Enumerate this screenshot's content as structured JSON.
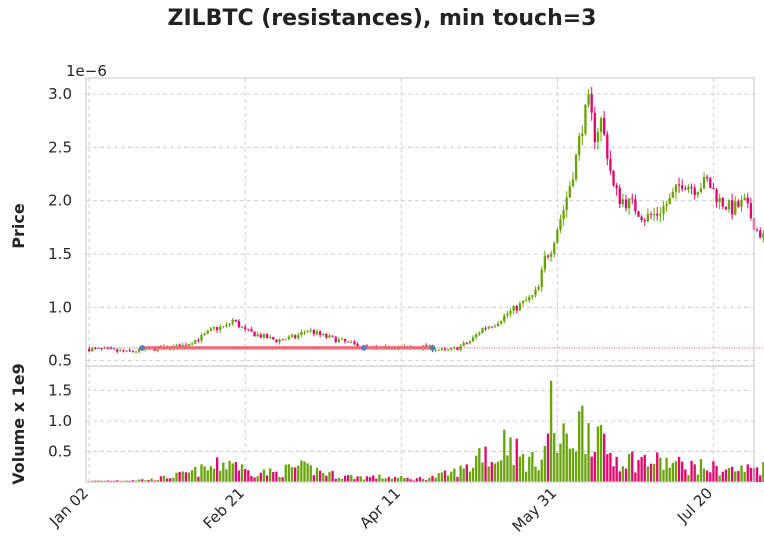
{
  "chart_data": {
    "type": "candlestick",
    "title": "ZILBTC (resistances), min touch=3",
    "price_axis": {
      "label": "Price",
      "multiplier_label": "1e−6",
      "ticks": [
        "0.5",
        "1.0",
        "1.5",
        "2.0",
        "2.5",
        "3.0"
      ],
      "ylim": [
        0.45,
        3.15
      ]
    },
    "volume_axis": {
      "label": "Volume x 1e9",
      "ticks": [
        "0.5",
        "1.0",
        "1.5"
      ],
      "ylim": [
        0,
        1.9
      ]
    },
    "x_axis": {
      "ticks": [
        "Jan 02",
        "Feb 21",
        "Apr 11",
        "May 31",
        "Jul 20"
      ],
      "tick_days": [
        0,
        50,
        100,
        150,
        200
      ],
      "xlim": [
        -1,
        213
      ]
    },
    "resistance_level": 0.62,
    "touch_days": [
      17,
      88,
      110
    ],
    "colors": {
      "up": "#6aa40c",
      "down": "#e0096f",
      "level": "#f07c7c",
      "touch": "#4f7fbf"
    },
    "grid": true,
    "price_path": [
      [
        0,
        0.61
      ],
      [
        6,
        0.6
      ],
      [
        12,
        0.58
      ],
      [
        18,
        0.6
      ],
      [
        24,
        0.62
      ],
      [
        30,
        0.64
      ],
      [
        36,
        0.72
      ],
      [
        40,
        0.8
      ],
      [
        44,
        0.82
      ],
      [
        46,
        0.88
      ],
      [
        50,
        0.78
      ],
      [
        54,
        0.74
      ],
      [
        60,
        0.69
      ],
      [
        66,
        0.72
      ],
      [
        70,
        0.79
      ],
      [
        74,
        0.74
      ],
      [
        80,
        0.69
      ],
      [
        86,
        0.64
      ],
      [
        92,
        0.61
      ],
      [
        98,
        0.63
      ],
      [
        104,
        0.62
      ],
      [
        108,
        0.63
      ],
      [
        114,
        0.59
      ],
      [
        118,
        0.62
      ],
      [
        122,
        0.68
      ],
      [
        126,
        0.8
      ],
      [
        130,
        0.85
      ],
      [
        134,
        0.94
      ],
      [
        138,
        1.02
      ],
      [
        142,
        1.1
      ],
      [
        144,
        1.18
      ],
      [
        146,
        1.46
      ],
      [
        148,
        1.55
      ],
      [
        150,
        1.75
      ],
      [
        152,
        1.92
      ],
      [
        154,
        2.15
      ],
      [
        156,
        2.4
      ],
      [
        158,
        2.72
      ],
      [
        160,
        2.9
      ],
      [
        162,
        2.62
      ],
      [
        164,
        2.75
      ],
      [
        166,
        2.45
      ],
      [
        168,
        2.12
      ],
      [
        170,
        2.02
      ],
      [
        174,
        1.96
      ],
      [
        178,
        1.84
      ],
      [
        182,
        1.88
      ],
      [
        186,
        2.0
      ],
      [
        190,
        2.18
      ],
      [
        194,
        2.12
      ],
      [
        198,
        2.18
      ],
      [
        202,
        2.0
      ],
      [
        206,
        1.92
      ],
      [
        210,
        1.98
      ],
      [
        214,
        1.72
      ],
      [
        218,
        1.6
      ],
      [
        220,
        1.62
      ]
    ],
    "volume_path": [
      [
        0,
        0.02
      ],
      [
        20,
        0.05
      ],
      [
        30,
        0.15
      ],
      [
        40,
        0.3
      ],
      [
        46,
        0.45
      ],
      [
        50,
        0.22
      ],
      [
        60,
        0.18
      ],
      [
        66,
        0.3
      ],
      [
        72,
        0.25
      ],
      [
        80,
        0.12
      ],
      [
        88,
        0.1
      ],
      [
        96,
        0.1
      ],
      [
        104,
        0.06
      ],
      [
        110,
        0.1
      ],
      [
        116,
        0.18
      ],
      [
        122,
        0.3
      ],
      [
        126,
        0.7
      ],
      [
        130,
        0.4
      ],
      [
        134,
        0.95
      ],
      [
        138,
        0.5
      ],
      [
        142,
        0.4
      ],
      [
        146,
        0.65
      ],
      [
        148,
        1.5
      ],
      [
        150,
        0.7
      ],
      [
        154,
        0.9
      ],
      [
        158,
        1.2
      ],
      [
        162,
        1.15
      ],
      [
        164,
        0.75
      ],
      [
        168,
        0.5
      ],
      [
        174,
        0.45
      ],
      [
        180,
        0.42
      ],
      [
        186,
        0.38
      ],
      [
        192,
        0.32
      ],
      [
        198,
        0.3
      ],
      [
        204,
        0.25
      ],
      [
        210,
        0.25
      ],
      [
        214,
        0.3
      ],
      [
        218,
        0.28
      ],
      [
        220,
        0.15
      ]
    ]
  }
}
